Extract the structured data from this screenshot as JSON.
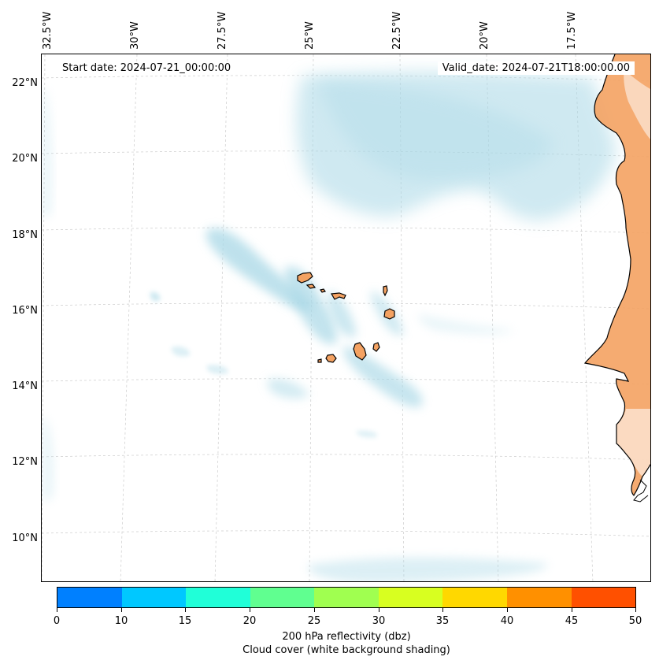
{
  "map": {
    "start_date": "Start date: 2024-07-21_00:00:00",
    "valid_date": "Valid_date: 2024-07-21T18:00:00.00",
    "lon_labels": [
      "32.5°W",
      "30°W",
      "27.5°W",
      "25°W",
      "22.5°W",
      "20°W",
      "17.5°W"
    ],
    "lat_labels": [
      "22°N",
      "20°N",
      "18°N",
      "16°N",
      "14°N",
      "12°N",
      "10°N"
    ],
    "cloud_color": "#a9d8e6",
    "land_color": "#f4a262",
    "coast_color": "#000000"
  },
  "colorbar": {
    "ticks": [
      "0",
      "10",
      "15",
      "20",
      "25",
      "30",
      "35",
      "40",
      "45",
      "50"
    ],
    "colors": [
      "#0080ff",
      "#00c8ff",
      "#20ffd8",
      "#60ff90",
      "#a0ff50",
      "#d8ff20",
      "#ffd800",
      "#ff9000",
      "#ff5000"
    ],
    "label_line1": "200 hPa reflectivity (dbz)",
    "label_line2": "Cloud cover (white background shading)"
  }
}
